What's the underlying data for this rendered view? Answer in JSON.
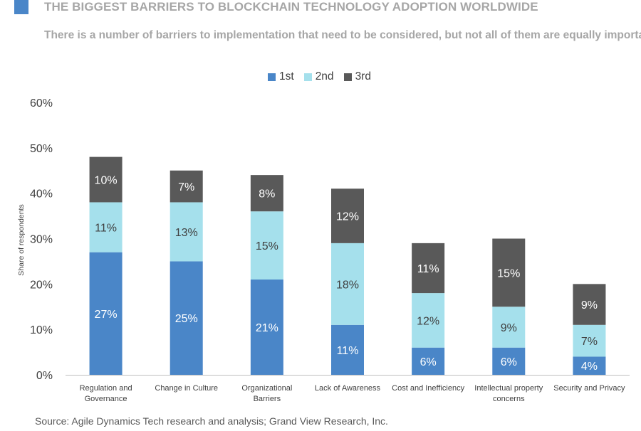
{
  "header": {
    "title": "THE BIGGEST BARRIERS TO BLOCKCHAIN TECHNOLOGY ADOPTION WORLDWIDE",
    "subtitle": "There is a number of barriers to implementation that need to be considered, but not all of them are equally important",
    "accent_color": "#4a86c8"
  },
  "legend": [
    {
      "label": "1st",
      "color": "#4a86c8"
    },
    {
      "label": "2nd",
      "color": "#a5e0ec"
    },
    {
      "label": "3rd",
      "color": "#595959"
    }
  ],
  "source": "Source: Agile Dynamics Tech research and analysis; Grand View Research, Inc.",
  "chart_data": {
    "type": "bar",
    "stacked": true,
    "categories": [
      [
        "Regulation and",
        "Governance"
      ],
      [
        "Change in Culture"
      ],
      [
        "Organizational",
        "Barriers"
      ],
      [
        "Lack of Awareness"
      ],
      [
        "Cost and Inefficiency"
      ],
      [
        "Intellectual property",
        "concerns"
      ],
      [
        "Security and Privacy"
      ]
    ],
    "series": [
      {
        "name": "1st",
        "color": "#4a86c8",
        "label_color": "#ffffff",
        "values": [
          27,
          25,
          21,
          11,
          6,
          6,
          4
        ]
      },
      {
        "name": "2nd",
        "color": "#a5e0ec",
        "label_color": "#404040",
        "values": [
          11,
          13,
          15,
          18,
          12,
          9,
          7
        ]
      },
      {
        "name": "3rd",
        "color": "#595959",
        "label_color": "#ffffff",
        "values": [
          10,
          7,
          8,
          12,
          11,
          15,
          9
        ]
      }
    ],
    "ylabel": "Share of respondents",
    "xlabel": "",
    "ylim": [
      0,
      60
    ],
    "yticks": [
      0,
      10,
      20,
      30,
      40,
      50,
      60
    ],
    "ytick_labels": [
      "0%",
      "10%",
      "20%",
      "30%",
      "40%",
      "50%",
      "60%"
    ],
    "value_suffix": "%",
    "grid": false,
    "legend_position": "top-center"
  }
}
